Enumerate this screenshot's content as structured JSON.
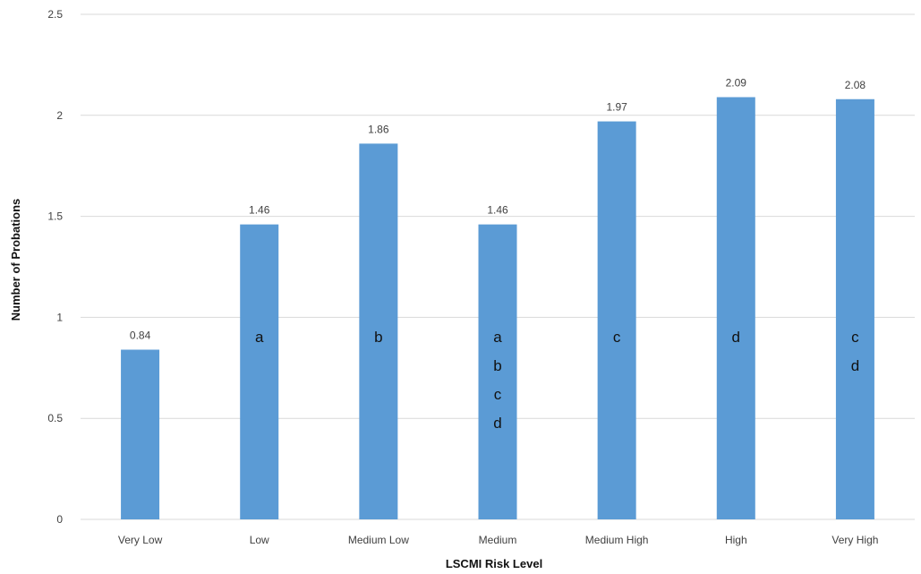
{
  "chart_data": {
    "type": "bar",
    "title": "",
    "xlabel": "LSCMI Risk Level",
    "ylabel": "Number of Probations",
    "categories": [
      "Very Low",
      "Low",
      "Medium Low",
      "Medium",
      "Medium High",
      "High",
      "Very High"
    ],
    "values": [
      0.84,
      1.46,
      1.86,
      1.46,
      1.97,
      2.09,
      2.08
    ],
    "data_labels": [
      "0.84",
      "1.46",
      "1.86",
      "1.46",
      "1.97",
      "2.09",
      "2.08"
    ],
    "group_letters": [
      [],
      [
        "a"
      ],
      [
        "b"
      ],
      [
        "a",
        "b",
        "c",
        "d"
      ],
      [
        "c"
      ],
      [
        "d"
      ],
      [
        "c",
        "d"
      ]
    ],
    "ylim": [
      0,
      2.5
    ],
    "yticks": [
      "0",
      "0.5",
      "1",
      "1.5",
      "2",
      "2.5"
    ],
    "grid": true,
    "legend": "none",
    "colors": {
      "bar": "#5B9BD5",
      "grid": "#D9D9D9",
      "text": "#404040"
    }
  }
}
